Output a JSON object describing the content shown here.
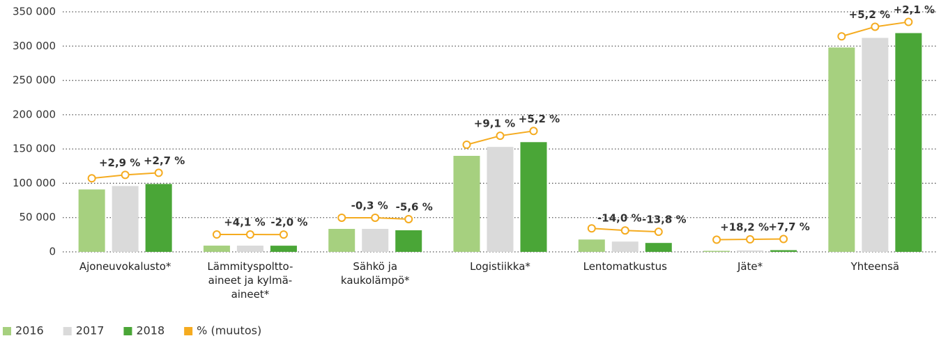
{
  "chart_data": {
    "type": "bar",
    "categories": [
      "Ajoneuvokalusto*",
      "Lämmityspoltto-\naineet ja kylmä-\naineet*",
      "Sähkö ja\nkaukolämpö*",
      "Logistiikka*",
      "Lentomatkustus",
      "Jäte*",
      "Yhteensä"
    ],
    "series": [
      {
        "name": "2016",
        "color": "#a6d07f",
        "values": [
          91000,
          9100,
          33500,
          140000,
          18000,
          1500,
          298000
        ]
      },
      {
        "name": "2017",
        "color": "#dadada",
        "values": [
          96000,
          9100,
          33500,
          153000,
          15000,
          2000,
          312000
        ]
      },
      {
        "name": "2018",
        "color": "#4aa637",
        "values": [
          99000,
          9000,
          31500,
          160000,
          13000,
          2500,
          319000
        ]
      }
    ],
    "change": {
      "name": "% (muutos)",
      "color": "#f5ab1f",
      "values": [
        [
          null,
          2.9,
          2.7
        ],
        [
          null,
          4.1,
          -2.0
        ],
        [
          null,
          -0.3,
          -5.6
        ],
        [
          null,
          9.1,
          5.2
        ],
        [
          null,
          -14.0,
          -13.8
        ],
        [
          null,
          18.2,
          7.7
        ],
        [
          null,
          5.2,
          2.1
        ]
      ],
      "value_labels": [
        [
          null,
          "+2,9 %",
          "+2,7 %"
        ],
        [
          null,
          "+4,1 %",
          "-2,0 %"
        ],
        [
          null,
          "-0,3 %",
          "-5,6 %"
        ],
        [
          null,
          "+9,1 %",
          "+5,2 %"
        ],
        [
          null,
          "-14,0 %",
          "-13,8 %"
        ],
        [
          null,
          "+18,2 %",
          "+7,7 %"
        ],
        [
          null,
          "+5,2 %",
          "+2,1 %"
        ]
      ]
    },
    "ylim": [
      0,
      350000
    ],
    "yticks": [
      0,
      {
        "value": 50000,
        "label": "50 000"
      },
      {
        "value": 100000,
        "label": "100 000"
      },
      {
        "value": 150000,
        "label": "150 000"
      },
      {
        "value": 200000,
        "label": "200 000"
      },
      {
        "value": 250000,
        "label": "250 000"
      },
      {
        "value": 300000,
        "label": "300 000"
      },
      {
        "value": 350000,
        "label": "350 000"
      }
    ],
    "grid": true,
    "legend": "bottom-left"
  }
}
